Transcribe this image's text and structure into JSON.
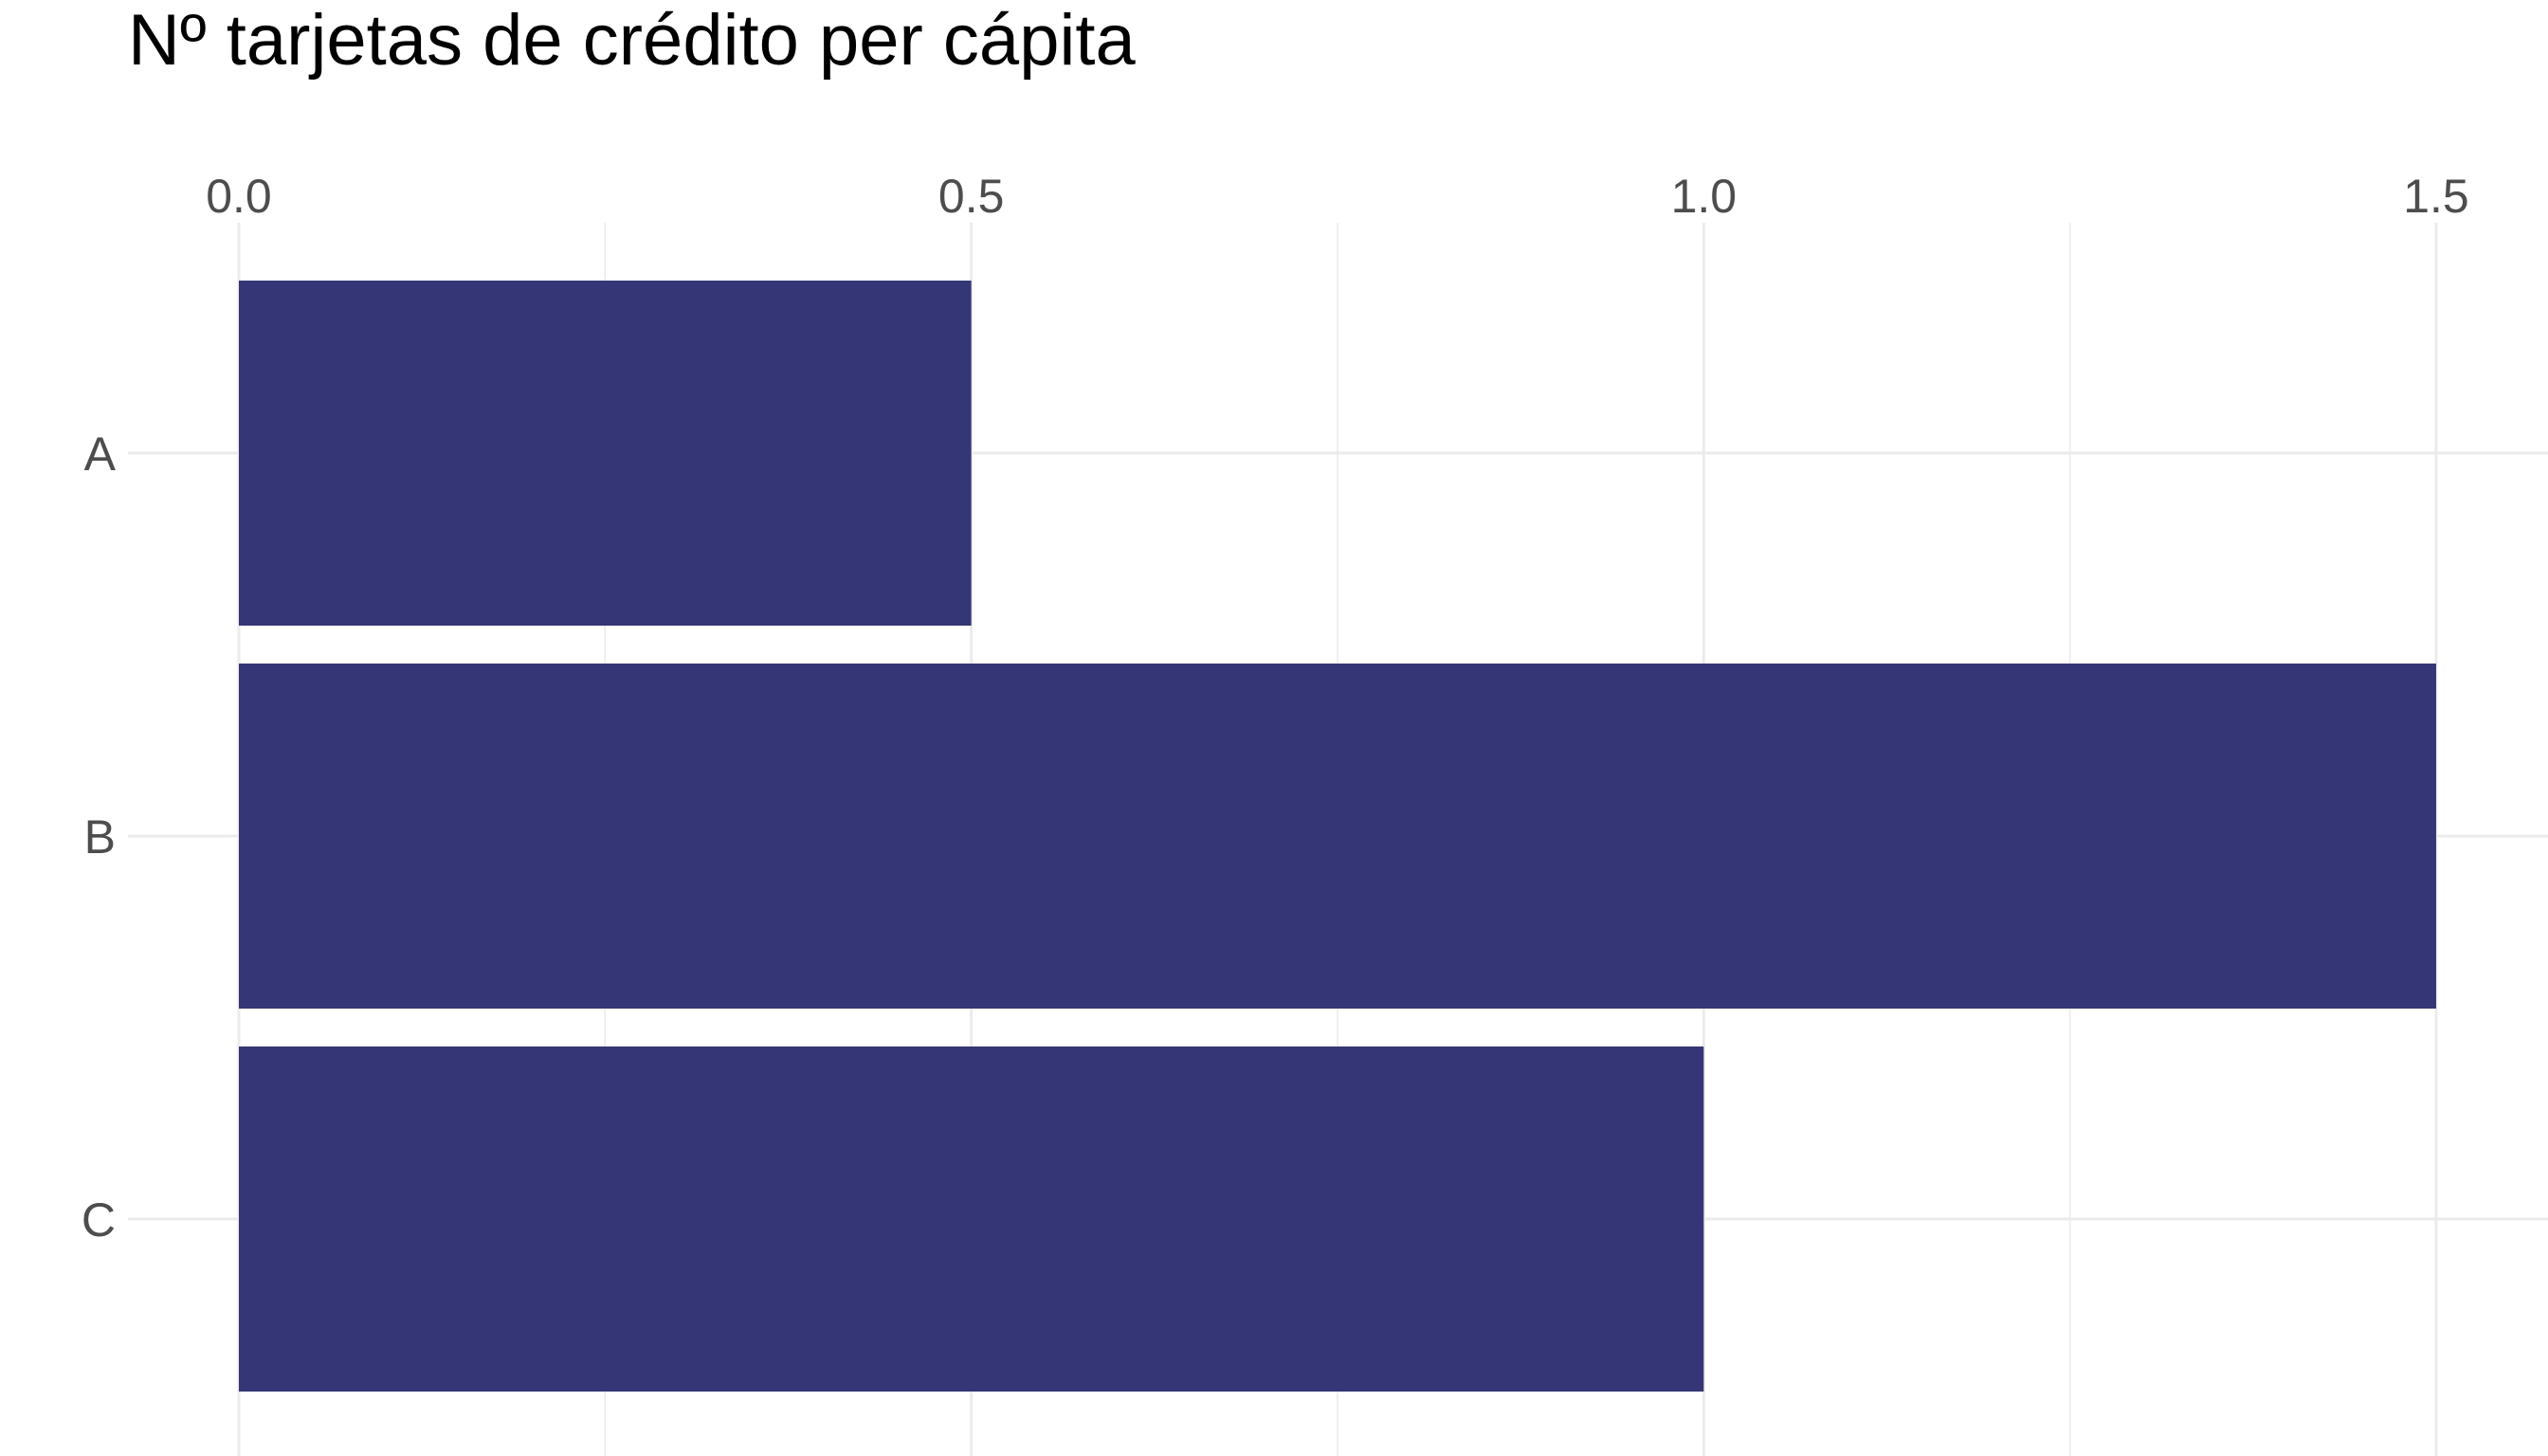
{
  "chart_data": {
    "type": "bar",
    "orientation": "horizontal",
    "title": "Nº tarjetas de crédito per cápita",
    "xlabel": "",
    "ylabel": "",
    "categories": [
      "A",
      "B",
      "C"
    ],
    "values": [
      0.5,
      1.5,
      1.0
    ],
    "xlim": [
      0,
      1.5
    ],
    "x_ticks": [
      0.0,
      0.5,
      1.0,
      1.5
    ],
    "x_tick_labels": [
      "0.0",
      "0.5",
      "1.0",
      "1.5"
    ],
    "x_axis_position": "top",
    "grid": true,
    "legend": "none",
    "colors": {
      "bar": "#353675",
      "grid": "#ebebeb",
      "tick_text": "#4d4d4d",
      "title_text": "#000000",
      "background": "#ffffff"
    }
  }
}
